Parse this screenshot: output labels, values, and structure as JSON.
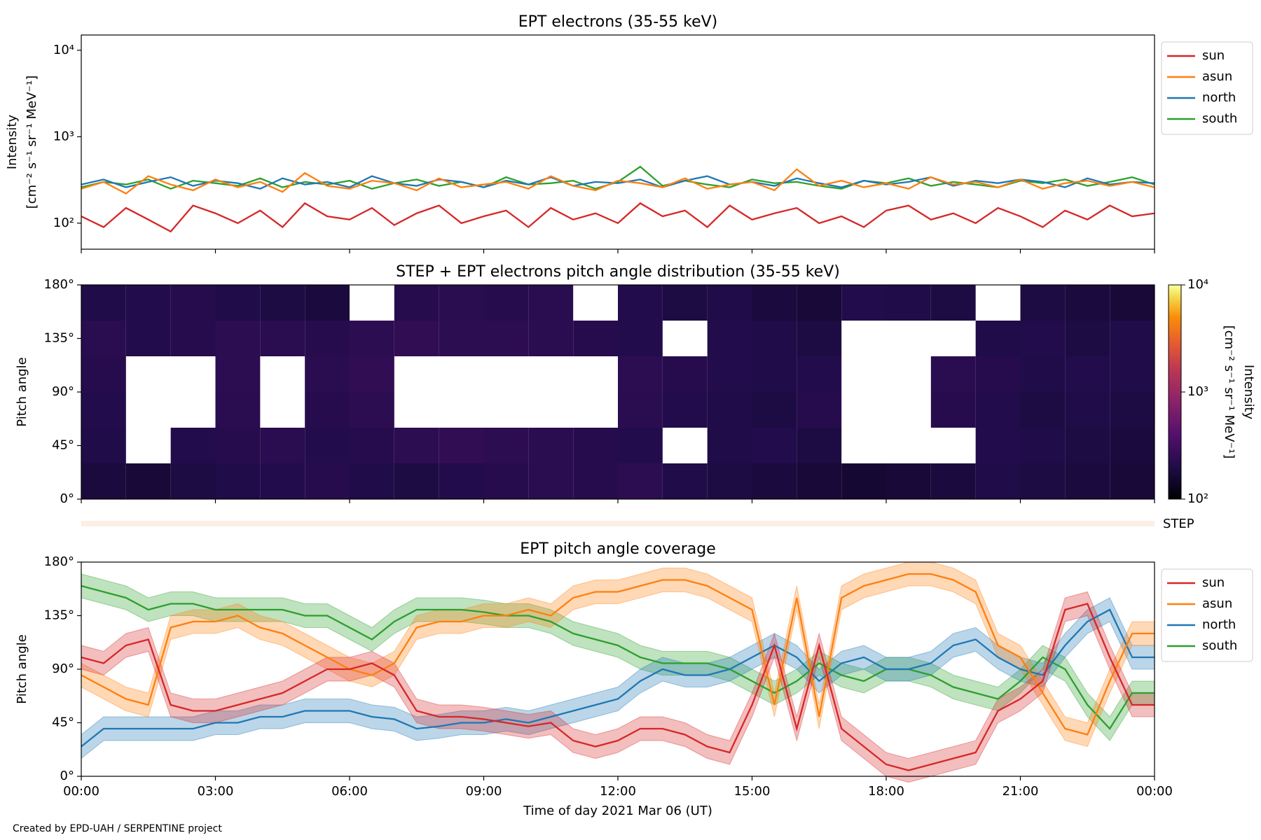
{
  "footer": "Created by EPD-UAH / SERPENTINE project",
  "chart_data": [
    {
      "type": "line",
      "title": "EPT electrons (35-55 keV)",
      "ylabel": [
        "Intensity",
        "[cm⁻² s⁻¹ sr⁻¹ MeV⁻¹]"
      ],
      "yscale": "log",
      "ylim": [
        50,
        15000
      ],
      "yticks": [
        {
          "value": 100,
          "label": "10²"
        },
        {
          "value": 1000,
          "label": "10³"
        },
        {
          "value": 10000,
          "label": "10⁴"
        }
      ],
      "xlim": [
        0,
        24
      ],
      "xticks": [
        0,
        3,
        6,
        9,
        12,
        15,
        18,
        21,
        24
      ],
      "legend": "outside right",
      "x": [
        0,
        0.5,
        1,
        1.5,
        2,
        2.5,
        3,
        3.5,
        4,
        4.5,
        5,
        5.5,
        6,
        6.5,
        7,
        7.5,
        8,
        8.5,
        9,
        9.5,
        10,
        10.5,
        11,
        11.5,
        12,
        12.5,
        13,
        13.5,
        14,
        14.5,
        15,
        15.5,
        16,
        16.5,
        17,
        17.5,
        18,
        18.5,
        19,
        19.5,
        20,
        20.5,
        21,
        21.5,
        22,
        22.5,
        23,
        23.5,
        24
      ],
      "series": [
        {
          "name": "sun",
          "color": "#d62728",
          "values": [
            120,
            90,
            150,
            110,
            80,
            160,
            130,
            100,
            140,
            90,
            170,
            120,
            110,
            150,
            95,
            130,
            160,
            100,
            120,
            140,
            90,
            150,
            110,
            130,
            100,
            170,
            120,
            140,
            90,
            160,
            110,
            130,
            150,
            100,
            120,
            90,
            140,
            160,
            110,
            130,
            100,
            150,
            120,
            90,
            140,
            110,
            160,
            120,
            130
          ]
        },
        {
          "name": "asun",
          "color": "#ff7f0e",
          "values": [
            250,
            300,
            220,
            350,
            280,
            240,
            320,
            260,
            300,
            230,
            380,
            270,
            250,
            310,
            290,
            240,
            330,
            260,
            280,
            300,
            250,
            350,
            270,
            240,
            310,
            290,
            260,
            330,
            250,
            280,
            300,
            240,
            420,
            270,
            310,
            260,
            290,
            250,
            340,
            280,
            300,
            260,
            320,
            250,
            290,
            310,
            270,
            300,
            260
          ]
        },
        {
          "name": "north",
          "color": "#1f77b4",
          "values": [
            280,
            320,
            260,
            300,
            340,
            270,
            310,
            290,
            250,
            330,
            280,
            300,
            260,
            350,
            290,
            270,
            320,
            300,
            260,
            310,
            280,
            340,
            270,
            300,
            290,
            320,
            260,
            310,
            350,
            280,
            300,
            270,
            330,
            290,
            260,
            310,
            280,
            300,
            340,
            270,
            310,
            290,
            320,
            300,
            260,
            330,
            280,
            300,
            290
          ]
        },
        {
          "name": "south",
          "color": "#2ca02c",
          "values": [
            260,
            300,
            280,
            320,
            250,
            310,
            290,
            270,
            330,
            260,
            300,
            280,
            310,
            250,
            290,
            320,
            270,
            300,
            260,
            340,
            280,
            290,
            310,
            250,
            300,
            450,
            270,
            310,
            280,
            260,
            320,
            290,
            300,
            270,
            250,
            310,
            290,
            330,
            270,
            300,
            280,
            260,
            310,
            290,
            320,
            270,
            300,
            340,
            280
          ]
        }
      ]
    },
    {
      "type": "heatmap",
      "title": "STEP + EPT electrons pitch angle distribution (35-55 keV)",
      "ylabel": [
        "Pitch angle"
      ],
      "ylim": [
        0,
        180
      ],
      "yticks": [
        {
          "value": 0,
          "label": "0°"
        },
        {
          "value": 45,
          "label": "45°"
        },
        {
          "value": 90,
          "label": "90°"
        },
        {
          "value": 135,
          "label": "135°"
        },
        {
          "value": 180,
          "label": "180°"
        }
      ],
      "xlim": [
        0,
        24
      ],
      "xticks": [
        0,
        3,
        6,
        9,
        12,
        15,
        18,
        21,
        24
      ],
      "x_edges": [
        0,
        1,
        2,
        3,
        4,
        5,
        6,
        7,
        8,
        9,
        10,
        11,
        12,
        13,
        14,
        15,
        16,
        17,
        18,
        19,
        20,
        21,
        22,
        23,
        24
      ],
      "y_edges": [
        0,
        30,
        60,
        90,
        120,
        150,
        180
      ],
      "values": [
        [
          180,
          170,
          190,
          200,
          210,
          220,
          200,
          190,
          210,
          220,
          230,
          220,
          240,
          200,
          190,
          180,
          170,
          160,
          170,
          180,
          200,
          190,
          180,
          170
        ],
        [
          200,
          null,
          210,
          220,
          230,
          210,
          220,
          240,
          250,
          240,
          230,
          220,
          210,
          null,
          200,
          210,
          190,
          null,
          null,
          null,
          210,
          200,
          190,
          180
        ],
        [
          210,
          null,
          null,
          230,
          null,
          220,
          240,
          null,
          null,
          null,
          null,
          null,
          230,
          210,
          200,
          190,
          220,
          null,
          null,
          220,
          210,
          190,
          200,
          190
        ],
        [
          220,
          null,
          null,
          240,
          null,
          230,
          250,
          null,
          null,
          null,
          null,
          null,
          240,
          220,
          210,
          200,
          210,
          null,
          null,
          230,
          220,
          200,
          210,
          200
        ],
        [
          230,
          210,
          220,
          240,
          230,
          220,
          240,
          250,
          240,
          240,
          230,
          220,
          210,
          null,
          210,
          200,
          190,
          null,
          null,
          null,
          200,
          210,
          190,
          200
        ],
        [
          200,
          210,
          220,
          200,
          190,
          180,
          null,
          220,
          230,
          220,
          230,
          null,
          210,
          190,
          200,
          180,
          170,
          210,
          200,
          190,
          null,
          190,
          180,
          170
        ]
      ],
      "colormap": "inferno",
      "cscale": "log",
      "clim": [
        100,
        10000
      ],
      "cticks": [
        {
          "value": 100,
          "label": "10²"
        },
        {
          "value": 1000,
          "label": "10³"
        },
        {
          "value": 10000,
          "label": "10⁴"
        }
      ],
      "clabel": [
        "Intensity",
        "[cm⁻² s⁻¹ sr⁻¹ MeV⁻¹]"
      ],
      "step_label": "STEP"
    },
    {
      "type": "line",
      "title": "EPT pitch angle coverage",
      "ylabel": [
        "Pitch angle"
      ],
      "xlabel": "Time of day 2021 Mar 06 (UT)",
      "ylim": [
        0,
        180
      ],
      "yticks": [
        {
          "value": 0,
          "label": "0°"
        },
        {
          "value": 45,
          "label": "45°"
        },
        {
          "value": 90,
          "label": "90°"
        },
        {
          "value": 135,
          "label": "135°"
        },
        {
          "value": 180,
          "label": "180°"
        }
      ],
      "xlim": [
        0,
        24
      ],
      "xticks": [
        {
          "value": 0,
          "label": "00:00"
        },
        {
          "value": 3,
          "label": "03:00"
        },
        {
          "value": 6,
          "label": "06:00"
        },
        {
          "value": 9,
          "label": "09:00"
        },
        {
          "value": 12,
          "label": "12:00"
        },
        {
          "value": 15,
          "label": "15:00"
        },
        {
          "value": 18,
          "label": "18:00"
        },
        {
          "value": 21,
          "label": "21:00"
        },
        {
          "value": 24,
          "label": "00:00"
        }
      ],
      "legend": "outside right",
      "spread": 10,
      "x": [
        0,
        0.5,
        1,
        1.5,
        2,
        2.5,
        3,
        3.5,
        4,
        4.5,
        5,
        5.5,
        6,
        6.5,
        7,
        7.5,
        8,
        8.5,
        9,
        9.5,
        10,
        10.5,
        11,
        11.5,
        12,
        12.5,
        13,
        13.5,
        14,
        14.5,
        15,
        15.5,
        16,
        16.5,
        17,
        17.5,
        18,
        18.5,
        19,
        19.5,
        20,
        20.5,
        21,
        21.5,
        22,
        22.5,
        23,
        23.5,
        24
      ],
      "series": [
        {
          "name": "sun",
          "color": "#d62728",
          "values": [
            100,
            95,
            110,
            115,
            60,
            55,
            55,
            60,
            65,
            70,
            80,
            90,
            90,
            95,
            85,
            55,
            50,
            50,
            48,
            45,
            42,
            45,
            30,
            25,
            30,
            40,
            40,
            35,
            25,
            20,
            60,
            110,
            40,
            110,
            40,
            25,
            10,
            5,
            10,
            15,
            20,
            55,
            65,
            80,
            140,
            145,
            100,
            60,
            60
          ]
        },
        {
          "name": "asun",
          "color": "#ff7f0e",
          "values": [
            85,
            75,
            65,
            60,
            125,
            130,
            130,
            135,
            125,
            120,
            110,
            100,
            90,
            85,
            95,
            125,
            130,
            130,
            135,
            135,
            140,
            135,
            150,
            155,
            155,
            160,
            165,
            165,
            160,
            150,
            140,
            60,
            150,
            50,
            150,
            160,
            165,
            170,
            170,
            165,
            155,
            110,
            100,
            70,
            40,
            35,
            80,
            120,
            120
          ]
        },
        {
          "name": "north",
          "color": "#1f77b4",
          "values": [
            25,
            40,
            40,
            40,
            40,
            40,
            45,
            45,
            50,
            50,
            55,
            55,
            55,
            50,
            48,
            40,
            42,
            45,
            45,
            48,
            45,
            50,
            55,
            60,
            65,
            80,
            90,
            85,
            85,
            90,
            100,
            110,
            100,
            80,
            95,
            100,
            90,
            90,
            95,
            110,
            115,
            100,
            90,
            85,
            110,
            130,
            140,
            100,
            100
          ]
        },
        {
          "name": "south",
          "color": "#2ca02c",
          "values": [
            160,
            155,
            150,
            140,
            145,
            145,
            140,
            140,
            140,
            140,
            135,
            135,
            125,
            115,
            130,
            140,
            140,
            140,
            138,
            135,
            135,
            130,
            120,
            115,
            110,
            100,
            95,
            95,
            95,
            90,
            80,
            70,
            80,
            95,
            85,
            80,
            90,
            90,
            85,
            75,
            70,
            65,
            80,
            100,
            90,
            60,
            40,
            70,
            70
          ]
        }
      ]
    }
  ]
}
